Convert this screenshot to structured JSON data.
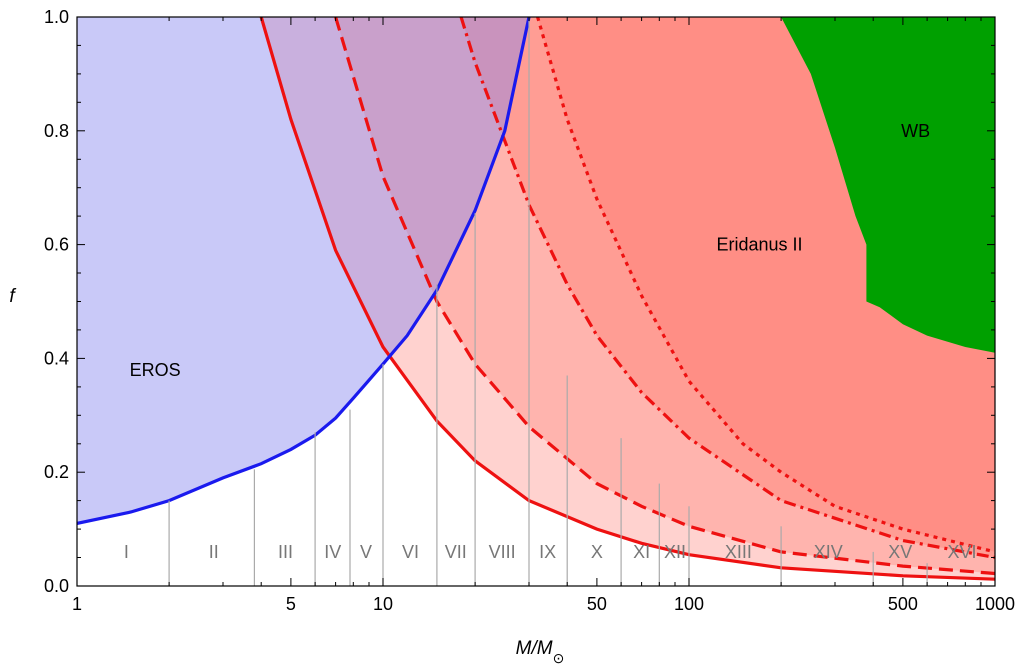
{
  "chart_data": {
    "type": "area",
    "title": "",
    "xlabel": "M/M",
    "xlabel_symbol": "⊙",
    "ylabel": "f",
    "xscale": "log",
    "xlim": [
      1,
      1000
    ],
    "ylim": [
      0,
      1
    ],
    "xticks": [
      1,
      5,
      10,
      50,
      100,
      500,
      1000
    ],
    "xtick_labels": [
      "1",
      "5",
      "10",
      "50",
      "100",
      "500",
      "1000"
    ],
    "yticks": [
      0,
      0.2,
      0.4,
      0.6,
      0.8,
      1.0
    ],
    "ytick_labels": [
      "0.0",
      "0.2",
      "0.4",
      "0.6",
      "0.8",
      "1.0"
    ],
    "colors": {
      "eros_fill": "#c8c8f8",
      "eros_line": "#1a1aee",
      "eridanus_line": "#ee1111",
      "eridanus_fill": "#ff8a80",
      "wb_fill": "#00a000",
      "bin_line": "#aaaaaa",
      "bin_label": "#777777"
    },
    "regions": [
      {
        "name": "EROS",
        "label": "EROS",
        "label_at": {
          "x": 1.8,
          "y": 0.38
        },
        "boundary": {
          "x": [
            1,
            1.5,
            2,
            3,
            4,
            5,
            6,
            7,
            8,
            10,
            12,
            15,
            20,
            25,
            30
          ],
          "y": [
            0.11,
            0.13,
            0.15,
            0.19,
            0.215,
            0.24,
            0.265,
            0.295,
            0.33,
            0.39,
            0.44,
            0.52,
            0.66,
            0.8,
            1.0
          ]
        }
      },
      {
        "name": "Eridanus II",
        "label": "Eridanus II",
        "label_at": {
          "x": 170,
          "y": 0.6
        },
        "curves": [
          {
            "style": "solid",
            "x": [
              4,
              5,
              7,
              10,
              15,
              20,
              30,
              50,
              70,
              100,
              200,
              500,
              1000
            ],
            "y": [
              1.0,
              0.82,
              0.59,
              0.42,
              0.29,
              0.22,
              0.15,
              0.1,
              0.075,
              0.055,
              0.032,
              0.018,
              0.012
            ]
          },
          {
            "style": "dashed",
            "x": [
              7,
              10,
              15,
              20,
              30,
              50,
              70,
              100,
              200,
              500,
              1000
            ],
            "y": [
              1.0,
              0.72,
              0.5,
              0.39,
              0.28,
              0.18,
              0.14,
              0.105,
              0.06,
              0.035,
              0.022
            ]
          },
          {
            "style": "dashdot",
            "x": [
              18,
              20,
              30,
              40,
              50,
              70,
              100,
              200,
              500,
              1000
            ],
            "y": [
              1.0,
              0.92,
              0.67,
              0.53,
              0.44,
              0.34,
              0.26,
              0.15,
              0.08,
              0.05
            ]
          },
          {
            "style": "dotted",
            "x": [
              32,
              40,
              50,
              70,
              100,
              150,
              200,
              300,
              500,
              1000
            ],
            "y": [
              1.0,
              0.82,
              0.68,
              0.51,
              0.36,
              0.25,
              0.2,
              0.14,
              0.1,
              0.06
            ]
          }
        ]
      },
      {
        "name": "WB",
        "label": "WB",
        "label_at": {
          "x": 550,
          "y": 0.8
        },
        "boundary": {
          "x": [
            200,
            250,
            300,
            350,
            380,
            380,
            420,
            500,
            600,
            800,
            1000
          ],
          "y": [
            1.0,
            0.9,
            0.77,
            0.65,
            0.6,
            0.5,
            0.49,
            0.46,
            0.44,
            0.42,
            0.41
          ]
        }
      }
    ],
    "bins": {
      "edges": [
        1,
        2,
        3.8,
        6,
        7.8,
        10,
        15,
        20,
        30,
        40,
        60,
        80,
        100,
        200,
        400,
        600,
        1000
      ],
      "tops": [
        0.15,
        0.205,
        0.27,
        0.31,
        0.39,
        0.53,
        0.655,
        1.0,
        0.37,
        0.26,
        0.18,
        0.14,
        0.105,
        0.06,
        0.04,
        0.02
      ],
      "labels": [
        "I",
        "II",
        "III",
        "IV",
        "V",
        "VI",
        "VII",
        "VIII",
        "IX",
        "X",
        "XI",
        "XII",
        "XIII",
        "XIV",
        "XV",
        "XVI"
      ],
      "label_positions": [
        1.45,
        2.8,
        4.8,
        6.85,
        8.8,
        12.3,
        17.3,
        24.5,
        34.5,
        50,
        70,
        90,
        145,
        285,
        490,
        780
      ],
      "label_y": 0.06
    }
  }
}
